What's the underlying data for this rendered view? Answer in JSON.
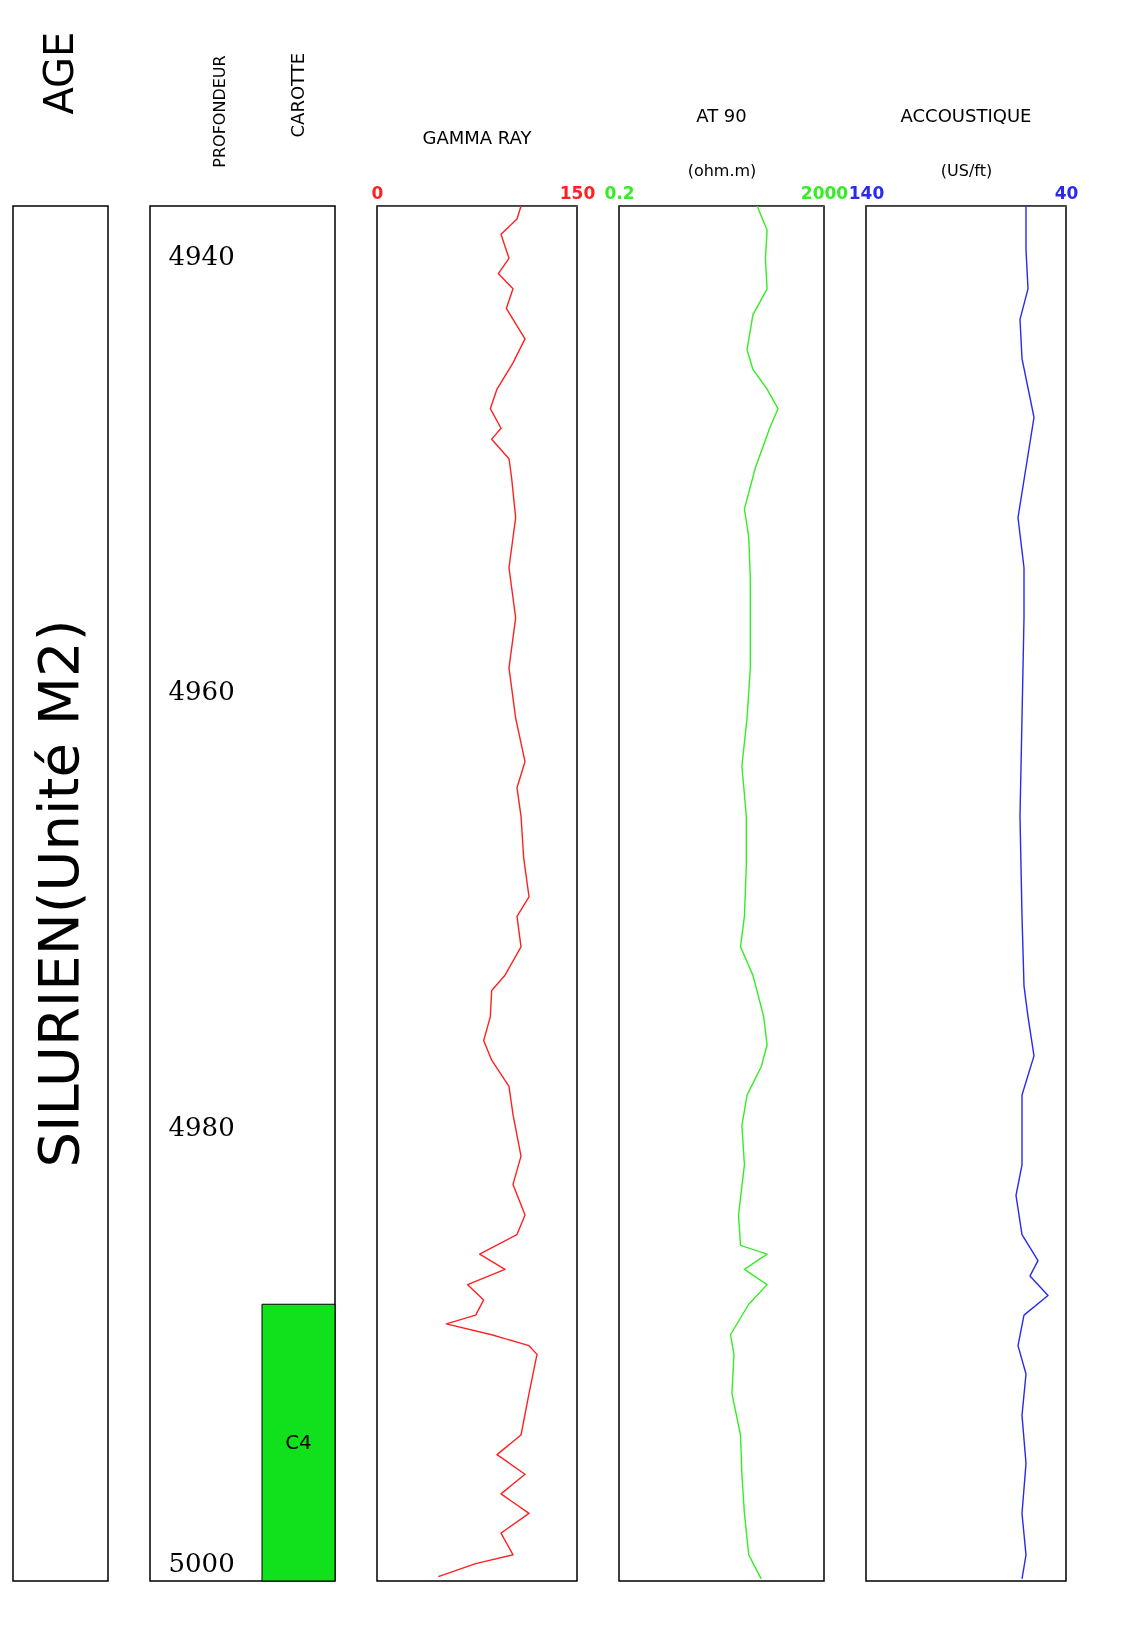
{
  "chart_data": [
    {
      "type": "other",
      "title": "AGE",
      "annotations": [
        "SILURIEN(Unité M2)"
      ]
    },
    {
      "type": "bar",
      "title": "CAROTTE",
      "ylabel": "PROFONDEUR",
      "ylim": [
        5000.8,
        4937.7
      ],
      "yticks": [
        4940,
        4960,
        4980,
        5000
      ],
      "categories": [
        "C4"
      ],
      "base": [
        4988.1
      ],
      "values": [
        12.7
      ],
      "colors": [
        "#11e11c"
      ]
    },
    {
      "type": "line",
      "title": "GAMMA RAY",
      "orientation": "horizontal",
      "ylim": [
        5000.8,
        4937.7
      ],
      "xlim": [
        0,
        150
      ],
      "xticks": [
        0,
        150
      ],
      "tick_labels": "x",
      "series": [
        {
          "color": "#ff2020",
          "x": [
            4937.7,
            4938.3,
            4939.0,
            4940.1,
            4940.8,
            4941.5,
            4942.4,
            4943.8,
            4944.9,
            4946.1,
            4947.0,
            4947.9,
            4948.4,
            4949.3,
            4950.2,
            4952.0,
            4954.3,
            4956.6,
            4958.9,
            4961.2,
            4963.2,
            4964.4,
            4965.7,
            4967.6,
            4969.4,
            4970.3,
            4971.7,
            4973.0,
            4973.7,
            4974.9,
            4976.0,
            4976.9,
            4978.1,
            4979.4,
            4981.3,
            4982.6,
            4984.0,
            4984.9,
            4985.8,
            4986.5,
            4987.2,
            4987.9,
            4988.6,
            4989.0,
            4989.5,
            4990.0,
            4990.4,
            4992.2,
            4994.1,
            4995.0,
            4995.9,
            4996.8,
            4997.7,
            4998.6,
            4999.6,
            5000.0,
            5000.6
          ],
          "values": [
            108,
            105,
            93,
            99,
            91,
            102,
            97,
            111,
            102,
            90,
            85,
            93,
            86,
            99,
            101,
            104,
            99,
            104,
            99,
            104,
            111,
            105,
            108,
            110,
            114,
            105,
            108,
            96,
            86,
            85,
            80,
            86,
            99,
            102,
            108,
            102,
            111,
            105,
            77,
            96,
            68,
            80,
            74,
            52,
            86,
            114,
            120,
            114,
            108,
            90,
            111,
            93,
            114,
            93,
            102,
            74,
            46
          ]
        }
      ]
    },
    {
      "type": "line",
      "title": "AT  90",
      "xlabel": "(ohm.m)",
      "orientation": "horizontal",
      "log": "x",
      "ylim": [
        5000.8,
        4937.7
      ],
      "xlim": [
        0.2,
        2000
      ],
      "xticks": [
        0.2,
        2000
      ],
      "tick_labels": "x",
      "series": [
        {
          "color": "#33ee22",
          "x": [
            4937.7,
            4938.8,
            4940.1,
            4941.5,
            4942.7,
            4944.3,
            4945.2,
            4946.1,
            4947.0,
            4947.9,
            4949.7,
            4951.6,
            4952.9,
            4954.8,
            4958.9,
            4961.2,
            4963.4,
            4965.7,
            4968.0,
            4970.3,
            4971.7,
            4973.0,
            4974.9,
            4976.2,
            4977.2,
            4978.5,
            4979.9,
            4981.7,
            4984.0,
            4985.4,
            4985.8,
            4986.5,
            4987.2,
            4988.1,
            4989.5,
            4990.4,
            4992.2,
            4994.1,
            4995.9,
            4997.7,
            4999.6,
            5000.7
          ],
          "values": [
            99,
            155,
            144,
            155,
            82,
            63,
            82,
            155,
            253,
            174,
            92,
            56,
            68,
            73,
            73,
            63,
            50,
            61,
            61,
            56,
            47,
            82,
            133,
            155,
            119,
            63,
            50,
            56,
            43,
            47,
            155,
            56,
            155,
            68,
            30,
            35,
            32,
            47,
            50,
            56,
            68,
            119
          ]
        }
      ]
    },
    {
      "type": "line",
      "title": "ACCOUSTIQUE",
      "xlabel": "(US/ft)",
      "orientation": "horizontal",
      "ylim": [
        5000.8,
        4937.7
      ],
      "xlim": [
        140,
        40
      ],
      "xticks": [
        140,
        40
      ],
      "tick_labels": "x",
      "series": [
        {
          "color": "#2a2aee",
          "x": [
            4937.7,
            4939.7,
            4941.5,
            4942.9,
            4944.7,
            4946.5,
            4947.4,
            4949.7,
            4952.0,
            4954.3,
            4956.6,
            4961.2,
            4965.7,
            4970.3,
            4973.5,
            4974.9,
            4976.7,
            4978.5,
            4981.7,
            4983.1,
            4984.9,
            4986.1,
            4986.8,
            4987.7,
            4988.6,
            4990.0,
            4991.3,
            4993.2,
            4995.4,
            4997.7,
            4999.6,
            5000.7
          ],
          "values": [
            60,
            60,
            59,
            63,
            62,
            58,
            56,
            60,
            64,
            61,
            61,
            62,
            63,
            62,
            61,
            59,
            56,
            62,
            62,
            65,
            62,
            54,
            58,
            49,
            61,
            64,
            60,
            62,
            60,
            62,
            60,
            62
          ]
        }
      ]
    }
  ]
}
